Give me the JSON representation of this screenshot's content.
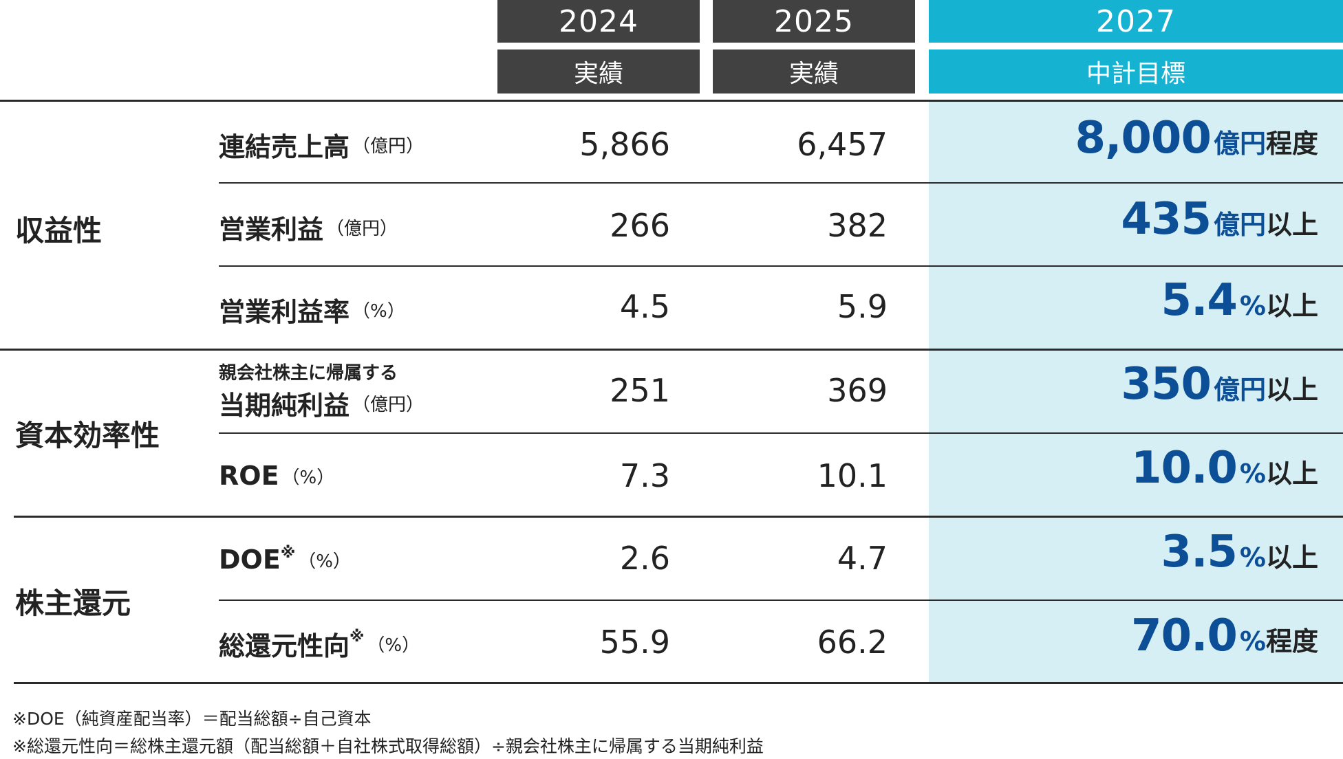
{
  "header": {
    "col1_year": "2024",
    "col1_label": "実績",
    "col2_year": "2025",
    "col2_label": "実績",
    "col3_year": "2027",
    "col3_label": "中計目標"
  },
  "colors": {
    "dark_header": "#414141",
    "teal_header": "#16b2d2",
    "target_bg": "#d5eff4",
    "target_text": "#0d4f97"
  },
  "categories": {
    "profitability": "収益性",
    "capital_efficiency": "資本効率性",
    "shareholder_return": "株主還元"
  },
  "rows": {
    "sales": {
      "name": "連結売上高",
      "unit": "（億円）",
      "v2024": "5,866",
      "v2025": "6,457",
      "target_num": "8,000",
      "target_unit": "億円",
      "target_qual": "程度"
    },
    "op_income": {
      "name": "営業利益",
      "unit": "（億円）",
      "v2024": "266",
      "v2025": "382",
      "target_num": "435",
      "target_unit": "億円",
      "target_qual": "以上"
    },
    "op_margin": {
      "name": "営業利益率",
      "unit": "（%）",
      "v2024": "4.5",
      "v2025": "5.9",
      "target_num": "5.4",
      "target_unit": "%",
      "target_qual": "以上"
    },
    "net_income": {
      "small": "親会社株主に帰属する",
      "name": "当期純利益",
      "unit": "（億円）",
      "v2024": "251",
      "v2025": "369",
      "target_num": "350",
      "target_unit": "億円",
      "target_qual": "以上"
    },
    "roe": {
      "name": "ROE",
      "unit": "（%）",
      "v2024": "7.3",
      "v2025": "10.1",
      "target_num": "10.0",
      "target_unit": "%",
      "target_qual": "以上"
    },
    "doe": {
      "name": "DOE",
      "mark": "※",
      "unit": "（%）",
      "v2024": "2.6",
      "v2025": "4.7",
      "target_num": "3.5",
      "target_unit": "%",
      "target_qual": "以上"
    },
    "payout": {
      "name": "総還元性向",
      "mark": "※",
      "unit": "（%）",
      "v2024": "55.9",
      "v2025": "66.2",
      "target_num": "70.0",
      "target_unit": "%",
      "target_qual": "程度"
    }
  },
  "notes": {
    "note1": "※DOE（純資産配当率）＝配当総額÷自己資本",
    "note2": "※総還元性向＝総株主還元額（配当総額＋自社株式取得総額）÷親会社株主に帰属する当期純利益"
  }
}
